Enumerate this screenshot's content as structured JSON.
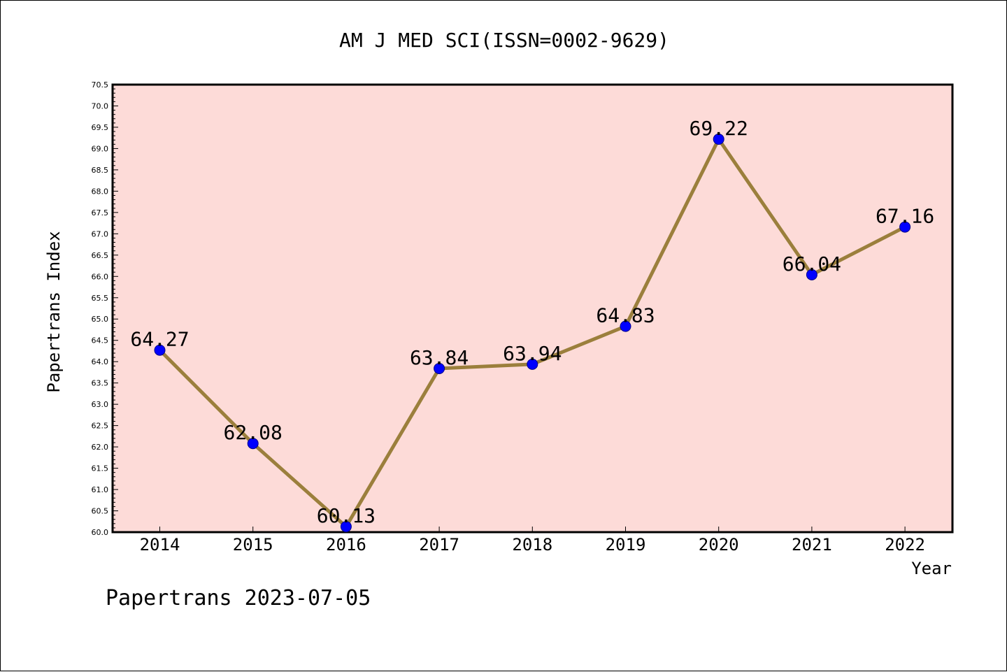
{
  "chart_data": {
    "type": "line",
    "title": "AM J MED SCI(ISSN=0002-9629)",
    "xlabel": "Year",
    "ylabel": "Papertrans Index",
    "footer": "Papertrans 2023-07-05",
    "categories": [
      "2014",
      "2015",
      "2016",
      "2017",
      "2018",
      "2019",
      "2020",
      "2021",
      "2022"
    ],
    "series": [
      {
        "values": [
          64.27,
          62.08,
          60.13,
          63.84,
          63.94,
          64.83,
          69.22,
          66.04,
          67.16
        ],
        "labels": [
          "64.27",
          "62.08",
          "60.13",
          "63.84",
          "63.94",
          "64.83",
          "69.22",
          "66.04",
          "67.16"
        ],
        "line_color": "#9b7f3c",
        "marker_color": "#0000ff"
      }
    ],
    "ylim": [
      60.0,
      70.5
    ],
    "yticks": [
      "60.0",
      "60.5",
      "61.0",
      "61.5",
      "62.0",
      "62.5",
      "63.0",
      "63.5",
      "64.0",
      "64.5",
      "65.0",
      "65.5",
      "66.0",
      "66.5",
      "67.0",
      "67.5",
      "68.0",
      "68.5",
      "69.0",
      "69.5",
      "70.0",
      "70.5"
    ],
    "plot_background": "#fddbd8",
    "grid": false,
    "legend": "none"
  }
}
